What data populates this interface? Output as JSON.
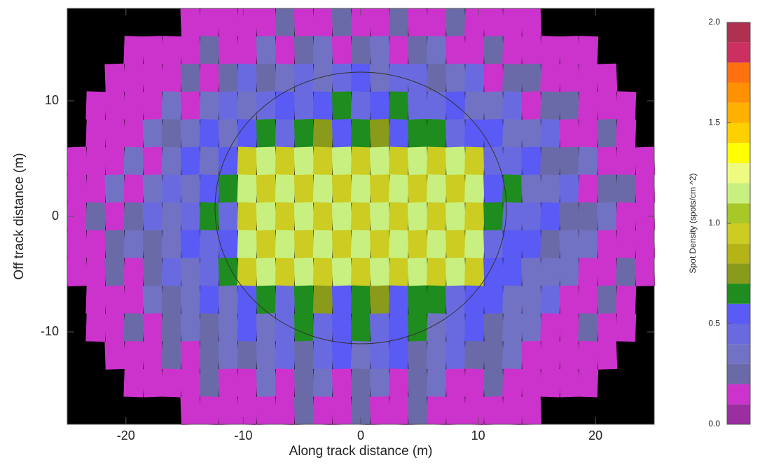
{
  "chart_data": {
    "type": "heatmap",
    "xlabel": "Along track distance (m)",
    "ylabel": "Off track distance (m)",
    "xlim": [
      -25,
      25
    ],
    "xticks": [
      -20,
      -10,
      0,
      10,
      20
    ],
    "ylim": [
      -18,
      18
    ],
    "yticks": [
      -10,
      0,
      10
    ],
    "colorbar": {
      "label": "Spot Density (spots/cm ^2)",
      "ylim": [
        0,
        2
      ],
      "yticks": [
        {
          "value": 0,
          "label": "0.0"
        },
        {
          "value": 0.5,
          "label": "0.5"
        },
        {
          "value": 1,
          "label": "1.0"
        },
        {
          "value": 1.5,
          "label": "1.5"
        },
        {
          "value": 2,
          "label": "2.0"
        }
      ],
      "bins": [
        0,
        0.1,
        0.2,
        0.3,
        0.4,
        0.5,
        0.6,
        0.7,
        0.8,
        0.9,
        1,
        1.1,
        1.2,
        1.3,
        1.4,
        1.5,
        1.6,
        1.7,
        1.8,
        1.9,
        2
      ],
      "colors": [
        "#9b2ea0",
        "#cc33cc",
        "#6a6aa8",
        "#7272c4",
        "#6a6ae0",
        "#5a5af4",
        "#1e8c1e",
        "#8a9a1a",
        "#b4b416",
        "#cccc22",
        "#a8c828",
        "#c8f080",
        "#eefa80",
        "#ffff00",
        "#ffd000",
        "#ffb000",
        "#ff9000",
        "#ff7010",
        "#cc3060",
        "#b03050"
      ]
    }
  }
}
